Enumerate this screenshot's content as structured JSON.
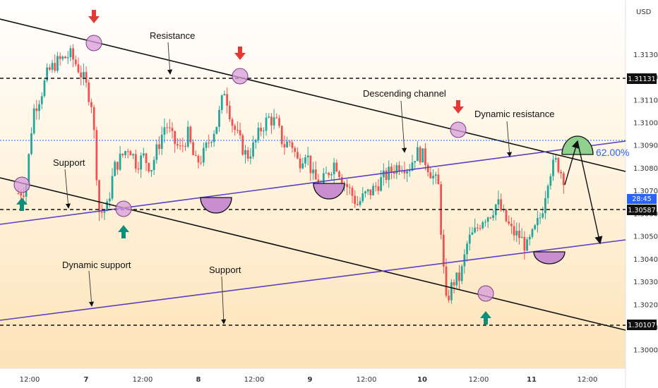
{
  "instrument": {
    "currency": "USD",
    "countdown": "28:45"
  },
  "colors": {
    "up": "#26a69a",
    "down": "#ef5350",
    "trend": "#111111",
    "dynamic": "#5b3fc4",
    "marker_down": "#e53935",
    "marker_up": "#0e8f7a",
    "fib": "#2962ff",
    "price_tag": "#2962ff"
  },
  "chart_data": {
    "type": "candlestick",
    "y_axis": {
      "ylim": [
        1.2992,
        1.3154
      ],
      "ticks": [
        "1.30000",
        "1.30100",
        "1.30200",
        "1.30300",
        "1.30400",
        "1.30500",
        "1.30600",
        "1.30700",
        "1.30800",
        "1.30900",
        "1.31000",
        "1.31100",
        "1.31200",
        "1.31300"
      ]
    },
    "x_axis": {
      "ticks": [
        "12:00",
        "7",
        "12:00",
        "8",
        "12:00",
        "9",
        "12:00",
        "10",
        "12:00",
        "11",
        "12:00"
      ]
    },
    "horizontal_levels": [
      {
        "label": "1.31131",
        "value": 1.31131
      },
      {
        "label": "1.30587",
        "value": 1.30587
      },
      {
        "label": "1.30107",
        "value": 1.30107
      }
    ],
    "current_price": 1.3076,
    "fib_level": {
      "label": "62.00%",
      "value": 1.30868
    },
    "price_path": [
      1.3069,
      1.3071,
      1.3105,
      1.3112,
      1.3122,
      1.3126,
      1.3128,
      1.313,
      1.3125,
      1.3118,
      1.3108,
      1.306,
      1.3062,
      1.308,
      1.3085,
      1.309,
      1.3082,
      1.3085,
      1.308,
      1.309,
      1.31,
      1.3092,
      1.3088,
      1.3095,
      1.3082,
      1.3085,
      1.3093,
      1.31,
      1.3115,
      1.31,
      1.3092,
      1.3085,
      1.309,
      1.3098,
      1.3102,
      1.31,
      1.309,
      1.3092,
      1.3082,
      1.3088,
      1.3076,
      1.3072,
      1.3078,
      1.3083,
      1.3075,
      1.307,
      1.3064,
      1.3068,
      1.307,
      1.3074,
      1.3077,
      1.308,
      1.3082,
      1.308,
      1.3087,
      1.3085,
      1.3078,
      1.3072,
      1.302,
      1.303,
      1.3032,
      1.3048,
      1.3052,
      1.3058,
      1.306,
      1.3065,
      1.3058,
      1.3052,
      1.305,
      1.3045,
      1.3052,
      1.306,
      1.3078,
      1.3083,
      1.3076
    ],
    "annotations": [
      "Resistance",
      "Descending channel",
      "Dynamic resistance",
      "Support",
      "Dynamic support",
      "Support"
    ]
  }
}
